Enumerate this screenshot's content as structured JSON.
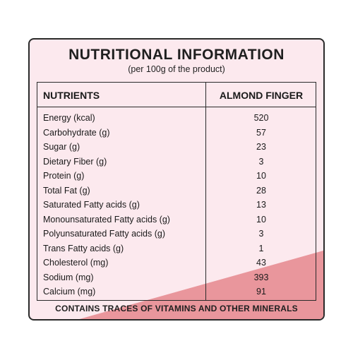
{
  "panel": {
    "title": "NUTRITIONAL INFORMATION",
    "subtitle": "(per 100g of the product)",
    "footer": "CONTAINS TRACES OF VITAMINS AND OTHER MINERALS",
    "colors": {
      "background": "#fce9ee",
      "accent": "#e9969c",
      "border": "#2a2a2a"
    }
  },
  "table": {
    "header_left": "NUTRIENTS",
    "header_right": "ALMOND FINGER",
    "rows": [
      {
        "name": "Energy (kcal)",
        "value": "520"
      },
      {
        "name": "Carbohydrate (g)",
        "value": "57"
      },
      {
        "name": "Sugar (g)",
        "value": "23"
      },
      {
        "name": "Dietary Fiber (g)",
        "value": "3"
      },
      {
        "name": "Protein (g)",
        "value": "10"
      },
      {
        "name": "Total Fat (g)",
        "value": "28"
      },
      {
        "name": "Saturated Fatty acids (g)",
        "value": "13"
      },
      {
        "name": "Monounsaturated Fatty acids (g)",
        "value": "10"
      },
      {
        "name": "Polyunsaturated Fatty acids (g)",
        "value": "3"
      },
      {
        "name": "Trans Fatty acids (g)",
        "value": "1"
      },
      {
        "name": "Cholesterol (mg)",
        "value": "43"
      },
      {
        "name": "Sodium (mg)",
        "value": "393"
      },
      {
        "name": "Calcium (mg)",
        "value": "91"
      }
    ]
  }
}
